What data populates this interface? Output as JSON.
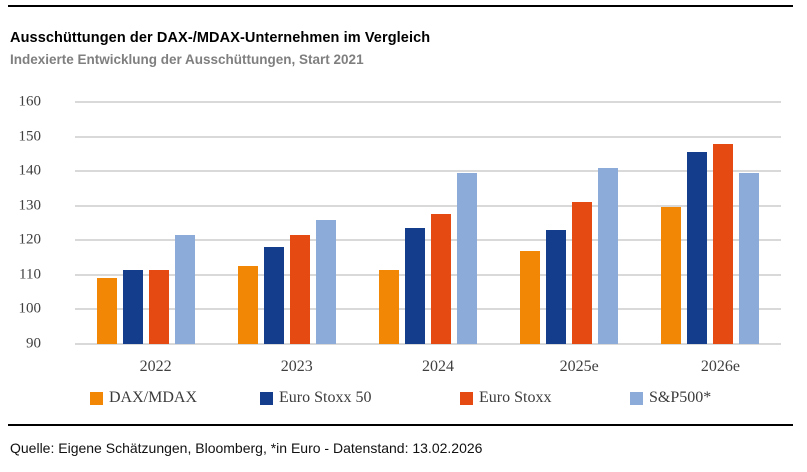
{
  "header": {
    "title": "Ausschüttungen der DAX-/MDAX-Unternehmen im Vergleich",
    "subtitle": "Indexierte Entwicklung der Ausschüttungen, Start 2021"
  },
  "footer": {
    "source": "Quelle: Eigene Schätzungen, Bloomberg, *in Euro - Datenstand: 13.02.2026"
  },
  "chart_data": {
    "type": "bar",
    "title": "Ausschüttungen der DAX-/MDAX-Unternehmen im Vergleich",
    "subtitle": "Indexierte Entwicklung der Ausschüttungen, Start 2021",
    "categories": [
      "2022",
      "2023",
      "2024",
      "2025e",
      "2026e"
    ],
    "series": [
      {
        "name": "DAX/MDAX",
        "color": "#f28705",
        "values": [
          109,
          112.5,
          111.5,
          117,
          129.5
        ]
      },
      {
        "name": "Euro Stoxx 50",
        "color": "#143d8c",
        "values": [
          111.5,
          118,
          123.5,
          123,
          145.5
        ]
      },
      {
        "name": "Euro Stoxx",
        "color": "#e54a12",
        "values": [
          111.5,
          121.5,
          127.5,
          131,
          148
        ]
      },
      {
        "name": "S&P500*",
        "color": "#8cabd8",
        "values": [
          121.5,
          126,
          139.5,
          141,
          139.5
        ]
      }
    ],
    "ylim": [
      90,
      160
    ],
    "ytick_step": 10,
    "yticks": [
      90,
      100,
      110,
      120,
      130,
      140,
      150,
      160
    ],
    "grid": true,
    "legend_position": "bottom",
    "gridline_color": "#d9d9d9"
  }
}
